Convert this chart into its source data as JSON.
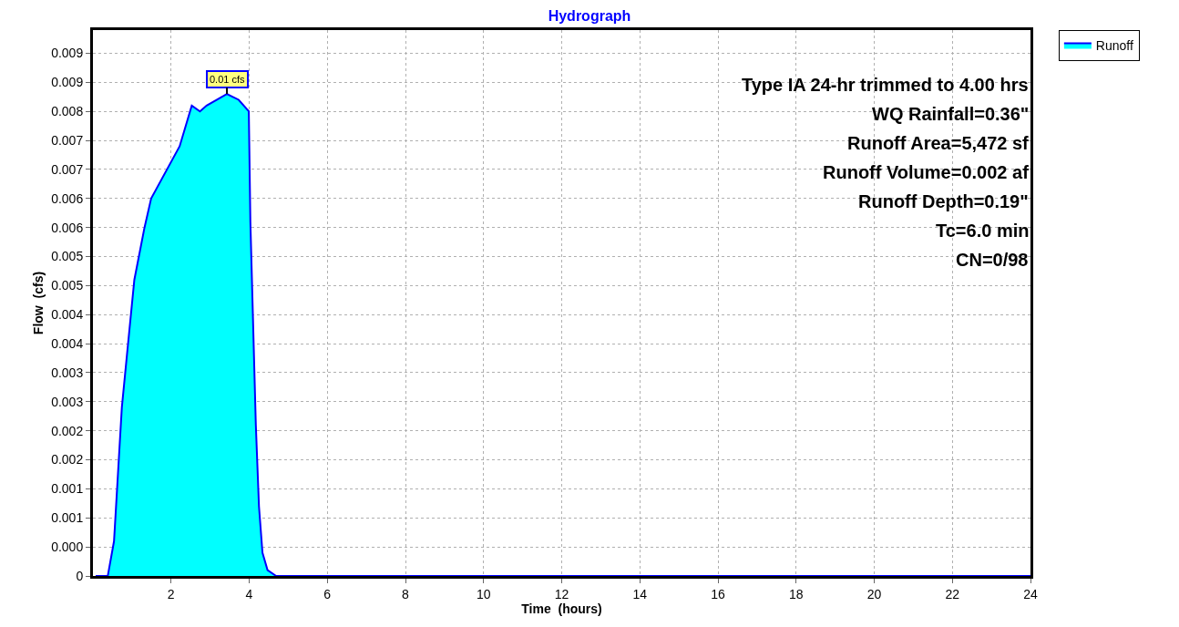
{
  "chart_data": {
    "type": "area",
    "title": "Hydrograph",
    "xlabel": "Time  (hours)",
    "ylabel": "Flow  (cfs)",
    "x": [
      0.07,
      0.38,
      0.54,
      0.74,
      0.87,
      1.06,
      1.32,
      1.49,
      2.22,
      2.53,
      2.74,
      2.91,
      3.43,
      3.73,
      3.99,
      4.03,
      4.17,
      4.25,
      4.34,
      4.47,
      4.69,
      24
    ],
    "series": [
      {
        "name": "Runoff",
        "color": "#00ffff",
        "values": [
          0,
          0,
          0.0006,
          0.0029,
          0.0038,
          0.0051,
          0.006,
          0.0065,
          0.0074,
          0.0081,
          0.008,
          0.0081,
          0.0083,
          0.0082,
          0.008,
          0.0061,
          0.0026,
          0.0012,
          0.0004,
          0.0001,
          0,
          0
        ]
      }
    ],
    "xlim": [
      0,
      24
    ],
    "xticks": [
      2,
      4,
      6,
      8,
      10,
      12,
      14,
      16,
      18,
      20,
      22,
      24
    ],
    "ylim": [
      0,
      0.0094
    ],
    "yticks": [
      0,
      {
        "value": 0.0005,
        "label": "0.000"
      },
      {
        "value": 0.001,
        "label": "0.001"
      },
      {
        "value": 0.0015,
        "label": "0.001"
      },
      {
        "value": 0.002,
        "label": "0.002"
      },
      {
        "value": 0.0025,
        "label": "0.002"
      },
      {
        "value": 0.003,
        "label": "0.003"
      },
      {
        "value": 0.0035,
        "label": "0.003"
      },
      {
        "value": 0.004,
        "label": "0.004"
      },
      {
        "value": 0.0045,
        "label": "0.004"
      },
      {
        "value": 0.005,
        "label": "0.005"
      },
      {
        "value": 0.0055,
        "label": "0.005"
      },
      {
        "value": 0.006,
        "label": "0.006"
      },
      {
        "value": 0.0065,
        "label": "0.006"
      },
      {
        "value": 0.007,
        "label": "0.007"
      },
      {
        "value": 0.0075,
        "label": "0.007"
      },
      {
        "value": 0.008,
        "label": "0.008"
      },
      {
        "value": 0.0085,
        "label": "0.009"
      },
      {
        "value": 0.009,
        "label": "0.009"
      }
    ],
    "grid": true,
    "legend": "top right",
    "annotations": [
      {
        "text": "0.01 cfs",
        "x": 3.43,
        "y": 0.0083
      },
      "Type IA 24-hr trimmed to 4.00 hrs",
      "WQ Rainfall=0.36\"",
      "Runoff Area=5,472 sf",
      "Runoff Volume=0.002 af",
      "Runoff Depth=0.19\"",
      "Tc=6.0 min",
      "CN=0/98"
    ]
  }
}
